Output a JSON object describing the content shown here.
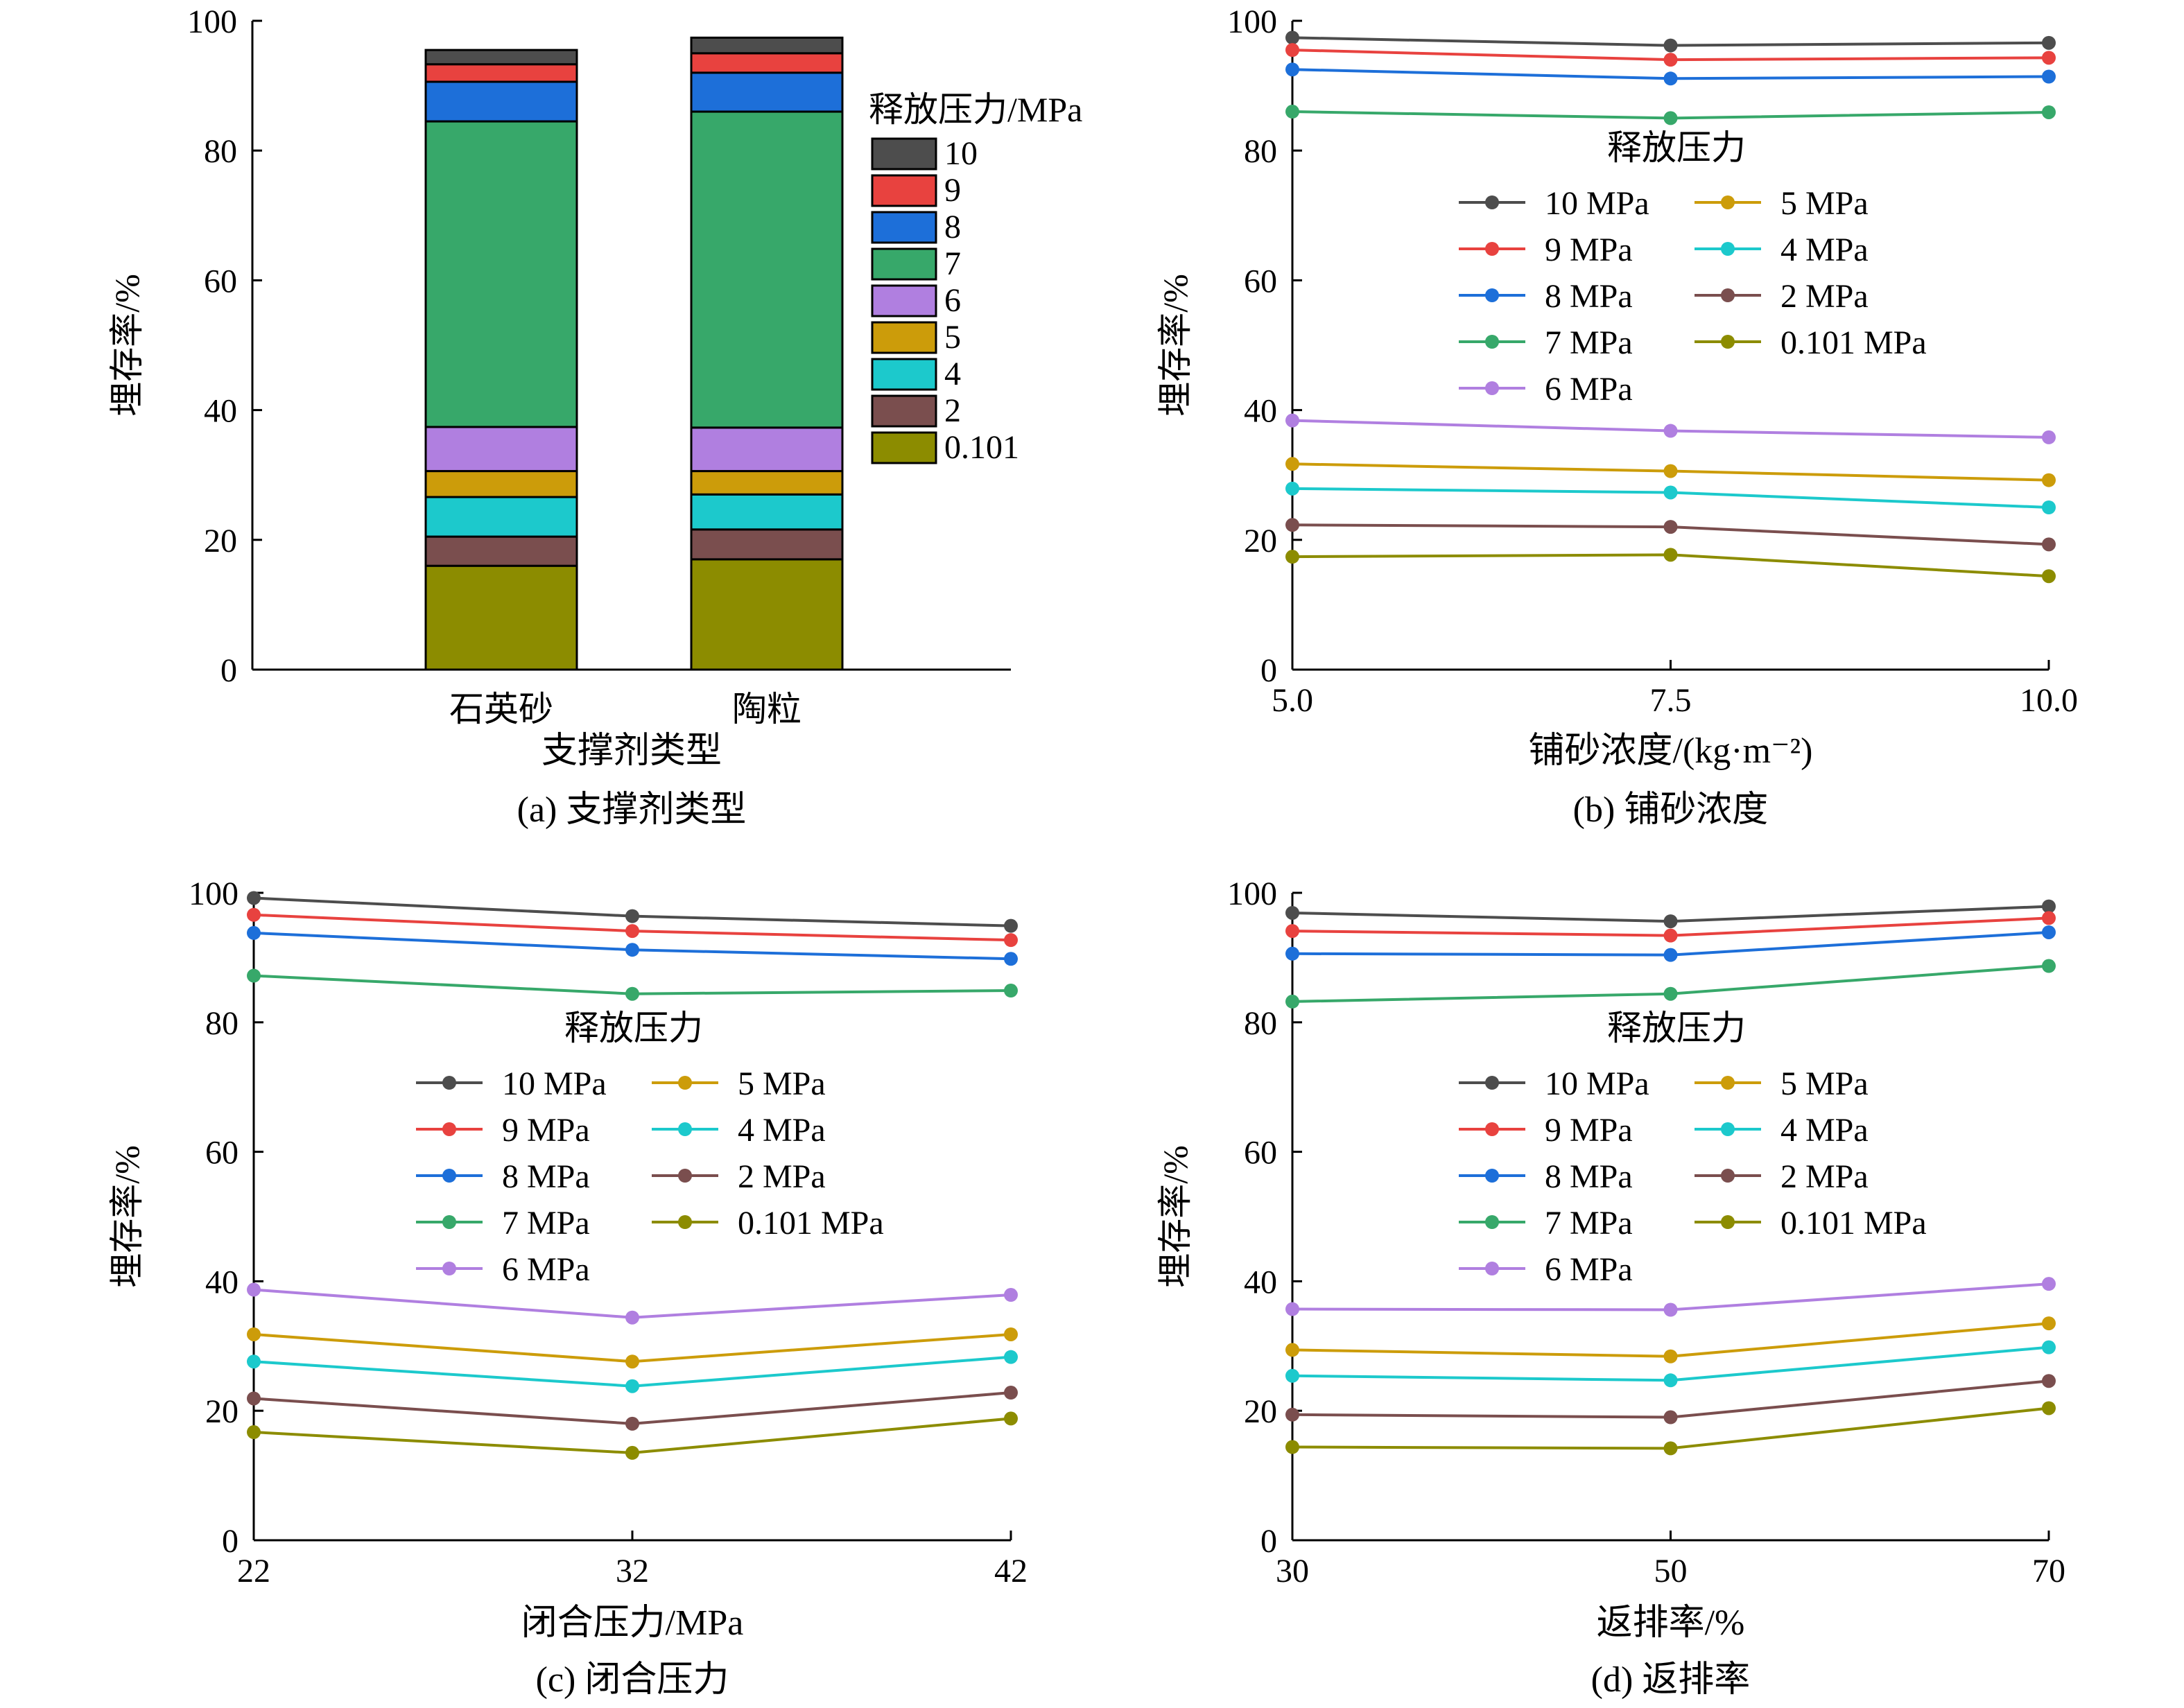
{
  "colors": {
    "10": "#4d4d4d",
    "9": "#e8423f",
    "8": "#1d6fd9",
    "7": "#37a86a",
    "6": "#b07fe0",
    "5": "#cc9c0a",
    "4": "#1cc9cc",
    "2": "#7a4e4e",
    "0.101": "#8c8c00"
  },
  "chart_data": [
    {
      "id": "a",
      "type": "bar",
      "stacked": true,
      "caption": "(a) 支撑剂类型",
      "xlabel": "支撑剂类型",
      "ylabel": "埋存率/%",
      "ylim": [
        0,
        100
      ],
      "yticks": [
        "0",
        "20",
        "40",
        "60",
        "80",
        "100"
      ],
      "categories": [
        "石英砂",
        "陶粒"
      ],
      "legend_title": "释放压力/MPa",
      "legend_position": "right",
      "series": [
        {
          "key": "0.101",
          "name": "0.101",
          "cumulative": [
            16.0,
            17.0
          ]
        },
        {
          "key": "2",
          "name": "2",
          "cumulative": [
            20.5,
            21.6
          ]
        },
        {
          "key": "4",
          "name": "4",
          "cumulative": [
            26.6,
            27.0
          ]
        },
        {
          "key": "5",
          "name": "5",
          "cumulative": [
            30.6,
            30.6
          ]
        },
        {
          "key": "6",
          "name": "6",
          "cumulative": [
            37.4,
            37.3
          ]
        },
        {
          "key": "7",
          "name": "7",
          "cumulative": [
            84.5,
            86.0
          ]
        },
        {
          "key": "8",
          "name": "8",
          "cumulative": [
            90.6,
            92.0
          ]
        },
        {
          "key": "9",
          "name": "9",
          "cumulative": [
            93.3,
            95.0
          ]
        },
        {
          "key": "10",
          "name": "10",
          "cumulative": [
            95.5,
            97.4
          ]
        }
      ]
    },
    {
      "id": "b",
      "type": "line",
      "caption": "(b) 铺砂浓度",
      "xlabel": "铺砂浓度/(kg·m⁻²)",
      "ylabel": "埋存率/%",
      "ylim": [
        0,
        100
      ],
      "yticks": [
        "0",
        "20",
        "40",
        "60",
        "80",
        "100"
      ],
      "x": [
        5.0,
        7.5,
        10.0
      ],
      "xticks": [
        "5.0",
        "7.5",
        "10.0"
      ],
      "legend_title": "释放压力",
      "legend_position": "upper-middle",
      "series": [
        {
          "key": "10",
          "name": "10 MPa",
          "values": [
            97.4,
            96.2,
            96.6
          ]
        },
        {
          "key": "9",
          "name": "9 MPa",
          "values": [
            95.5,
            94.0,
            94.3
          ]
        },
        {
          "key": "8",
          "name": "8 MPa",
          "values": [
            92.5,
            91.1,
            91.4
          ]
        },
        {
          "key": "7",
          "name": "7 MPa",
          "values": [
            86.0,
            85.0,
            85.9
          ]
        },
        {
          "key": "6",
          "name": "6 MPa",
          "values": [
            38.4,
            36.8,
            35.8
          ]
        },
        {
          "key": "5",
          "name": "5 MPa",
          "values": [
            31.7,
            30.6,
            29.2
          ]
        },
        {
          "key": "4",
          "name": "4 MPa",
          "values": [
            27.9,
            27.3,
            25.0
          ]
        },
        {
          "key": "2",
          "name": "2 MPa",
          "values": [
            22.3,
            22.0,
            19.3
          ]
        },
        {
          "key": "0.101",
          "name": "0.101 MPa",
          "values": [
            17.4,
            17.7,
            14.4
          ]
        }
      ]
    },
    {
      "id": "c",
      "type": "line",
      "caption": "(c) 闭合压力",
      "xlabel": "闭合压力/MPa",
      "ylabel": "埋存率/%",
      "ylim": [
        0,
        100
      ],
      "yticks": [
        "0",
        "20",
        "40",
        "60",
        "80",
        "100"
      ],
      "x": [
        22,
        32,
        42
      ],
      "xticks": [
        "22",
        "32",
        "42"
      ],
      "legend_title": "释放压力",
      "legend_position": "upper-middle",
      "series": [
        {
          "key": "10",
          "name": "10 MPa",
          "values": [
            99.2,
            96.4,
            94.9
          ]
        },
        {
          "key": "9",
          "name": "9 MPa",
          "values": [
            96.6,
            94.1,
            92.7
          ]
        },
        {
          "key": "8",
          "name": "8 MPa",
          "values": [
            93.8,
            91.2,
            89.8
          ]
        },
        {
          "key": "7",
          "name": "7 MPa",
          "values": [
            87.2,
            84.4,
            84.9
          ]
        },
        {
          "key": "6",
          "name": "6 MPa",
          "values": [
            38.7,
            34.4,
            37.9
          ]
        },
        {
          "key": "5",
          "name": "5 MPa",
          "values": [
            31.8,
            27.6,
            31.8
          ]
        },
        {
          "key": "4",
          "name": "4 MPa",
          "values": [
            27.6,
            23.8,
            28.3
          ]
        },
        {
          "key": "2",
          "name": "2 MPa",
          "values": [
            21.9,
            18.0,
            22.8
          ]
        },
        {
          "key": "0.101",
          "name": "0.101 MPa",
          "values": [
            16.7,
            13.5,
            18.8
          ]
        }
      ]
    },
    {
      "id": "d",
      "type": "line",
      "caption": "(d) 返排率",
      "xlabel": "返排率/%",
      "ylabel": "埋存率/%",
      "ylim": [
        0,
        100
      ],
      "yticks": [
        "0",
        "20",
        "40",
        "60",
        "80",
        "100"
      ],
      "x": [
        30,
        50,
        70
      ],
      "xticks": [
        "30",
        "50",
        "70"
      ],
      "legend_title": "释放压力",
      "legend_position": "upper-middle",
      "series": [
        {
          "key": "10",
          "name": "10 MPa",
          "values": [
            96.9,
            95.6,
            97.9
          ]
        },
        {
          "key": "9",
          "name": "9 MPa",
          "values": [
            94.1,
            93.4,
            96.1
          ]
        },
        {
          "key": "8",
          "name": "8 MPa",
          "values": [
            90.6,
            90.4,
            93.9
          ]
        },
        {
          "key": "7",
          "name": "7 MPa",
          "values": [
            83.2,
            84.4,
            88.7
          ]
        },
        {
          "key": "6",
          "name": "6 MPa",
          "values": [
            35.7,
            35.6,
            39.6
          ]
        },
        {
          "key": "5",
          "name": "5 MPa",
          "values": [
            29.4,
            28.4,
            33.5
          ]
        },
        {
          "key": "4",
          "name": "4 MPa",
          "values": [
            25.4,
            24.7,
            29.8
          ]
        },
        {
          "key": "2",
          "name": "2 MPa",
          "values": [
            19.4,
            19.0,
            24.6
          ]
        },
        {
          "key": "0.101",
          "name": "0.101 MPa",
          "values": [
            14.4,
            14.2,
            20.4
          ]
        }
      ]
    }
  ]
}
